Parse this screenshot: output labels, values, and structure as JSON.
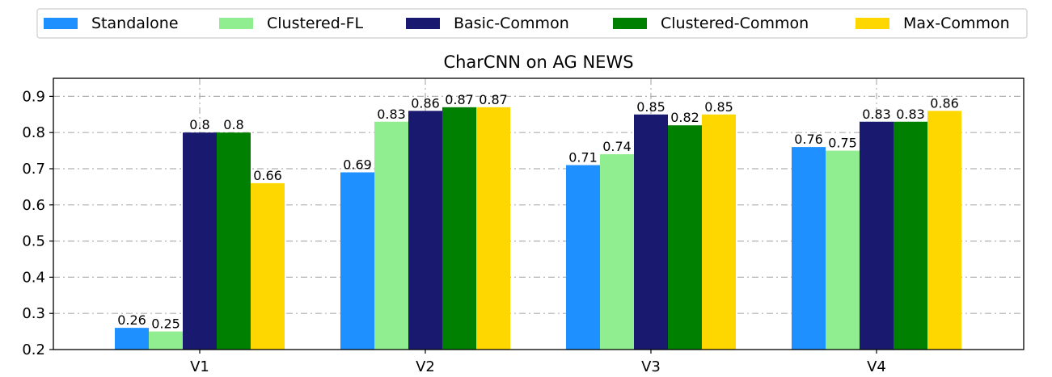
{
  "chart_data": {
    "type": "bar",
    "title": "CharCNN on AG NEWS",
    "xlabel": "",
    "ylabel": "",
    "categories": [
      "V1",
      "V2",
      "V3",
      "V4"
    ],
    "ylim": [
      0.2,
      0.95
    ],
    "yticks": [
      0.2,
      0.3,
      0.4,
      0.5,
      0.6,
      0.7,
      0.8,
      0.9
    ],
    "ytick_labels": [
      "0.2",
      "0.3",
      "0.4",
      "0.5",
      "0.6",
      "0.7",
      "0.8",
      "0.9"
    ],
    "grid": true,
    "legend_position": "top",
    "series": [
      {
        "name": "Standalone",
        "color": "#1e90ff",
        "values": [
          0.26,
          0.69,
          0.71,
          0.76
        ],
        "labels": [
          "0.26",
          "0.69",
          "0.71",
          "0.76"
        ]
      },
      {
        "name": "Clustered-FL",
        "color": "#90ee90",
        "values": [
          0.25,
          0.83,
          0.74,
          0.75
        ],
        "labels": [
          "0.25",
          "0.83",
          "0.74",
          "0.75"
        ]
      },
      {
        "name": "Basic-Common",
        "color": "#191970",
        "values": [
          0.8,
          0.86,
          0.85,
          0.83
        ],
        "labels": [
          "0.8",
          "0.86",
          "0.85",
          "0.83"
        ]
      },
      {
        "name": "Clustered-Common",
        "color": "#008000",
        "values": [
          0.8,
          0.87,
          0.82,
          0.83
        ],
        "labels": [
          "0.8",
          "0.87",
          "0.82",
          "0.83"
        ]
      },
      {
        "name": "Max-Common",
        "color": "#ffd700",
        "values": [
          0.66,
          0.87,
          0.85,
          0.86
        ],
        "labels": [
          "0.66",
          "0.87",
          "0.85",
          "0.86"
        ]
      }
    ]
  }
}
